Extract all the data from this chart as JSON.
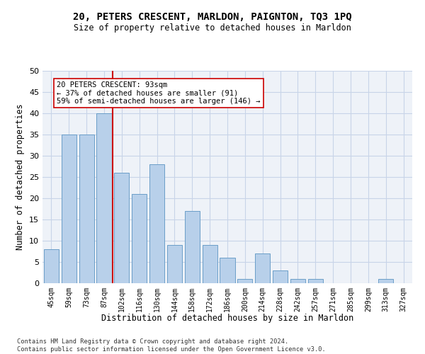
{
  "title_line1": "20, PETERS CRESCENT, MARLDON, PAIGNTON, TQ3 1PQ",
  "title_line2": "Size of property relative to detached houses in Marldon",
  "xlabel": "Distribution of detached houses by size in Marldon",
  "ylabel": "Number of detached properties",
  "categories": [
    "45sqm",
    "59sqm",
    "73sqm",
    "87sqm",
    "102sqm",
    "116sqm",
    "130sqm",
    "144sqm",
    "158sqm",
    "172sqm",
    "186sqm",
    "200sqm",
    "214sqm",
    "228sqm",
    "242sqm",
    "257sqm",
    "271sqm",
    "285sqm",
    "299sqm",
    "313sqm",
    "327sqm"
  ],
  "values": [
    8,
    35,
    35,
    40,
    26,
    21,
    28,
    9,
    17,
    9,
    6,
    1,
    7,
    3,
    1,
    1,
    0,
    0,
    0,
    1,
    0
  ],
  "bar_color": "#b8d0ea",
  "bar_edge_color": "#6b9ec8",
  "grid_color": "#c8d4e8",
  "background_color": "#eef2f8",
  "property_line_x": 3.5,
  "property_line_color": "#cc0000",
  "annotation_text": "20 PETERS CRESCENT: 93sqm\n← 37% of detached houses are smaller (91)\n59% of semi-detached houses are larger (146) →",
  "annotation_box_color": "#ffffff",
  "annotation_box_edge": "#cc0000",
  "ylim": [
    0,
    50
  ],
  "yticks": [
    0,
    5,
    10,
    15,
    20,
    25,
    30,
    35,
    40,
    45,
    50
  ],
  "footer_line1": "Contains HM Land Registry data © Crown copyright and database right 2024.",
  "footer_line2": "Contains public sector information licensed under the Open Government Licence v3.0."
}
